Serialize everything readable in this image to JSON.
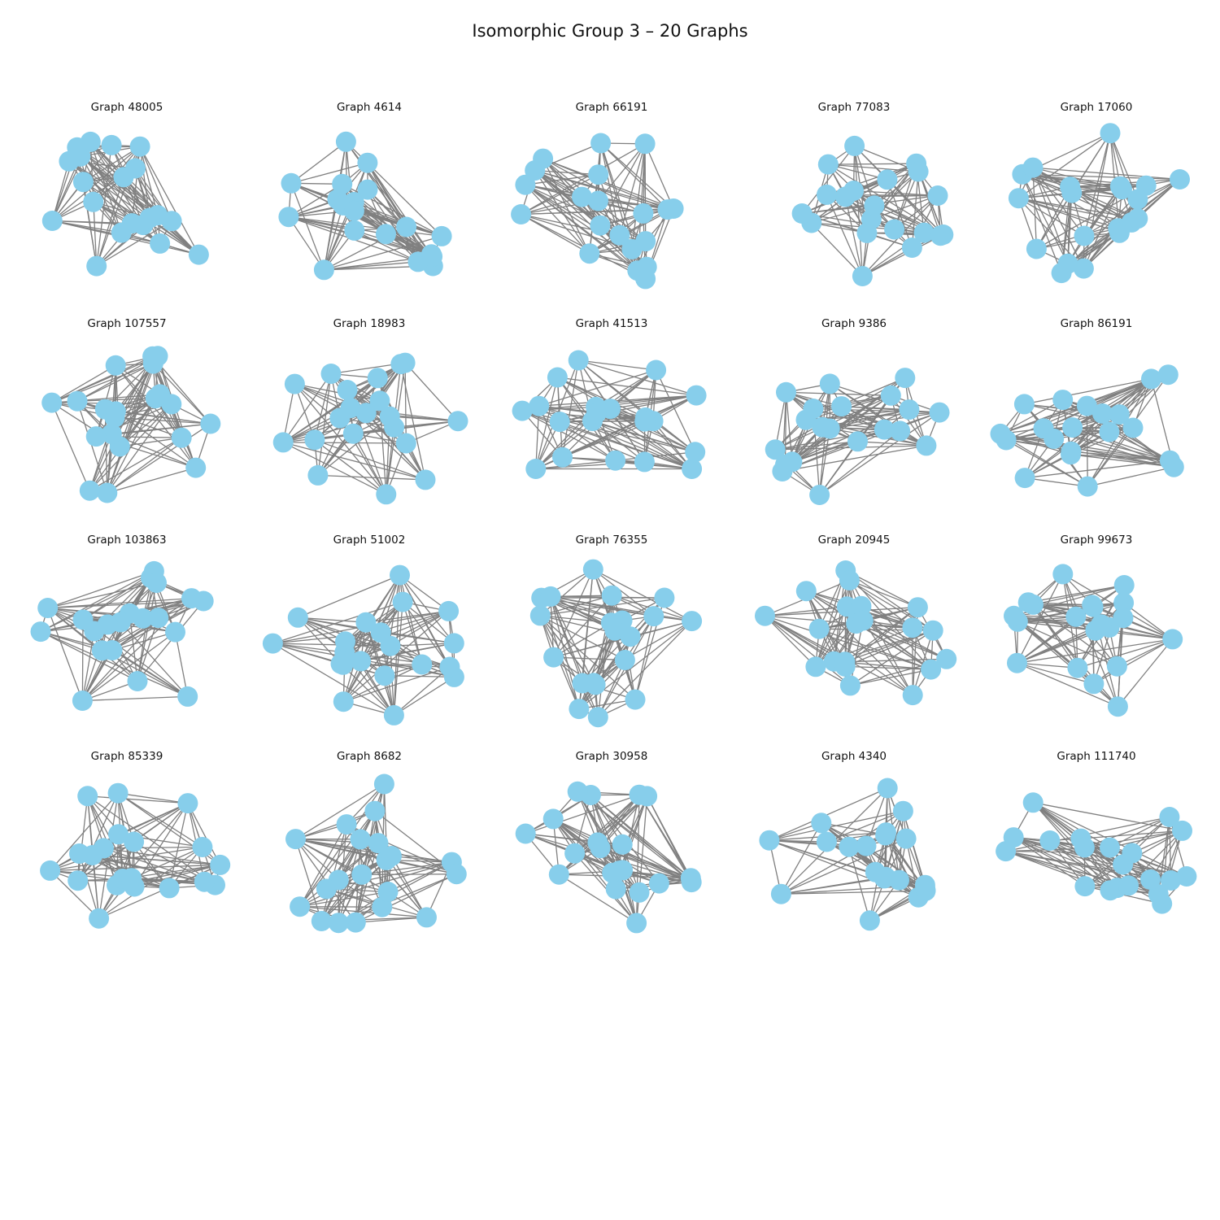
{
  "title": "Isomorphic Group 3 – 20 Graphs",
  "node_color": "#87CEEB",
  "edge_color": "#808080",
  "node_count_per_graph": 20,
  "graphs": [
    {
      "label": "Graph 48005"
    },
    {
      "label": "Graph 4614"
    },
    {
      "label": "Graph 66191"
    },
    {
      "label": "Graph 77083"
    },
    {
      "label": "Graph 17060"
    },
    {
      "label": "Graph 107557"
    },
    {
      "label": "Graph 18983"
    },
    {
      "label": "Graph 41513"
    },
    {
      "label": "Graph 9386"
    },
    {
      "label": "Graph 86191"
    },
    {
      "label": "Graph 103863"
    },
    {
      "label": "Graph 51002"
    },
    {
      "label": "Graph 76355"
    },
    {
      "label": "Graph 20945"
    },
    {
      "label": "Graph 99673"
    },
    {
      "label": "Graph 85339"
    },
    {
      "label": "Graph 8682"
    },
    {
      "label": "Graph 30958"
    },
    {
      "label": "Graph 4340"
    },
    {
      "label": "Graph 111740"
    }
  ]
}
